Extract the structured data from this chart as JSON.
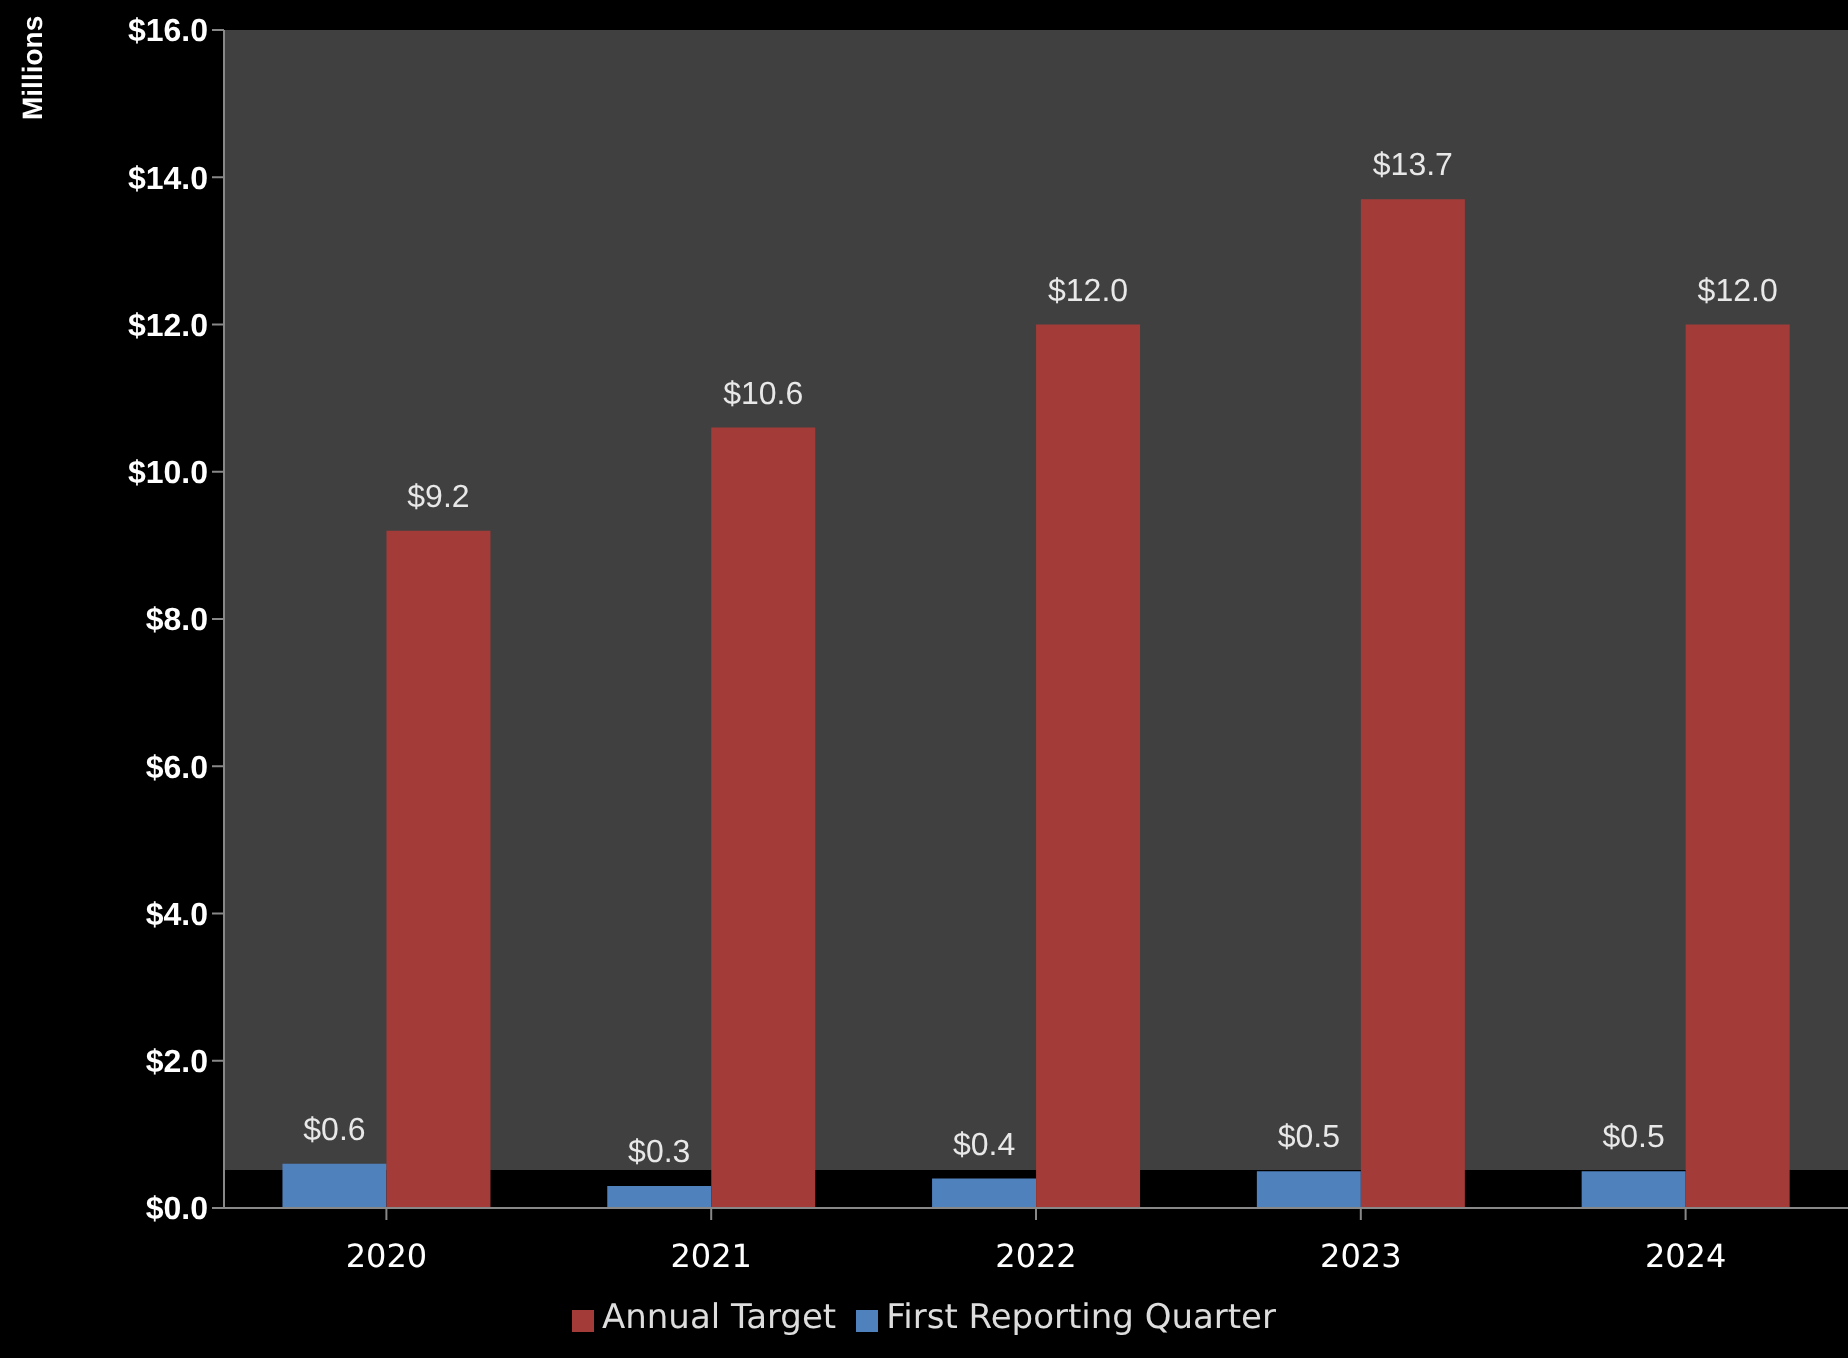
{
  "chart_data": {
    "type": "bar",
    "ylabel": "Millions",
    "categories": [
      "2020",
      "2021",
      "2022",
      "2023",
      "2024"
    ],
    "series": [
      {
        "name": "First Reporting Quarter",
        "color": "#4f81bd",
        "values": [
          0.6,
          0.3,
          0.4,
          0.5,
          0.5
        ],
        "value_labels": [
          "$0.6",
          "$0.3",
          "$0.4",
          "$0.5",
          "$0.5"
        ]
      },
      {
        "name": "Annual Target",
        "color": "#a33c39",
        "values": [
          9.2,
          10.6,
          12.0,
          13.7,
          12.0
        ],
        "value_labels": [
          "$9.2",
          "$10.6",
          "$12.0",
          "$13.7",
          "$12.0"
        ]
      }
    ],
    "ylim": [
      0,
      16
    ],
    "yticks": [
      {
        "value": 0,
        "label": "$0.0"
      },
      {
        "value": 2,
        "label": "$2.0"
      },
      {
        "value": 4,
        "label": "$4.0"
      },
      {
        "value": 6,
        "label": "$6.0"
      },
      {
        "value": 8,
        "label": "$8.0"
      },
      {
        "value": 10,
        "label": "$10.0"
      },
      {
        "value": 12,
        "label": "$12.0"
      },
      {
        "value": 14,
        "label": "$14.0"
      },
      {
        "value": 16,
        "label": "$16.0"
      }
    ],
    "grid": false,
    "legend": "bottom"
  }
}
